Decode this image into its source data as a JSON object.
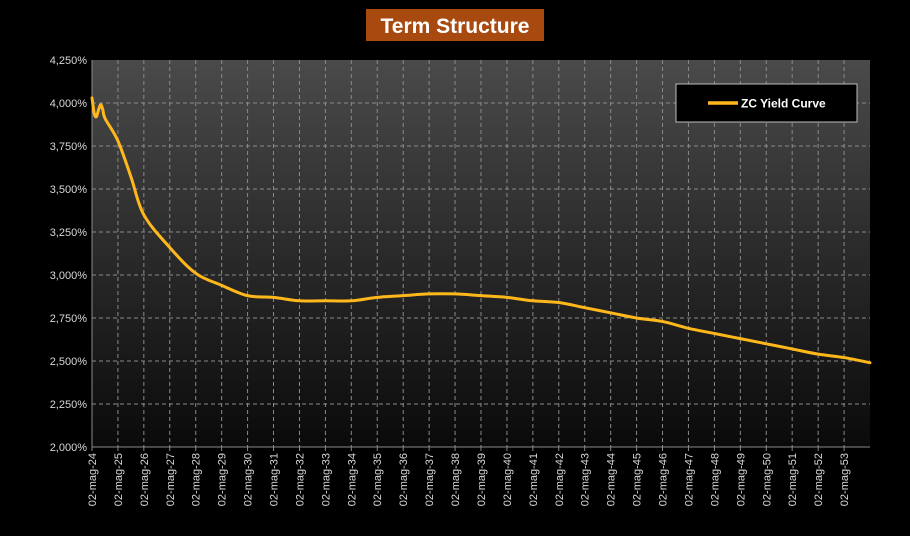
{
  "chart_data": {
    "type": "line",
    "title": "Term Structure",
    "xlabel": "",
    "ylabel": "",
    "ylim": [
      0.02,
      0.0425
    ],
    "xlim": [
      "2024-05-02",
      "2054-05-02"
    ],
    "grid": true,
    "legend_position": "top-right",
    "y_ticks": [
      {
        "value": 0.02,
        "label": "2,000%"
      },
      {
        "value": 0.0225,
        "label": "2,250%"
      },
      {
        "value": 0.025,
        "label": "2,500%"
      },
      {
        "value": 0.0275,
        "label": "2,750%"
      },
      {
        "value": 0.03,
        "label": "3,000%"
      },
      {
        "value": 0.0325,
        "label": "3,250%"
      },
      {
        "value": 0.035,
        "label": "3,500%"
      },
      {
        "value": 0.0375,
        "label": "3,750%"
      },
      {
        "value": 0.04,
        "label": "4,000%"
      },
      {
        "value": 0.0425,
        "label": "4,250%"
      }
    ],
    "x_ticks": [
      {
        "value": "2024-05-02",
        "label": "02-mag-24"
      },
      {
        "value": "2025-05-02",
        "label": "02-mag-25"
      },
      {
        "value": "2026-05-02",
        "label": "02-mag-26"
      },
      {
        "value": "2027-05-02",
        "label": "02-mag-27"
      },
      {
        "value": "2028-05-02",
        "label": "02-mag-28"
      },
      {
        "value": "2029-05-02",
        "label": "02-mag-29"
      },
      {
        "value": "2030-05-02",
        "label": "02-mag-30"
      },
      {
        "value": "2031-05-02",
        "label": "02-mag-31"
      },
      {
        "value": "2032-05-02",
        "label": "02-mag-32"
      },
      {
        "value": "2033-05-02",
        "label": "02-mag-33"
      },
      {
        "value": "2034-05-02",
        "label": "02-mag-34"
      },
      {
        "value": "2035-05-02",
        "label": "02-mag-35"
      },
      {
        "value": "2036-05-02",
        "label": "02-mag-36"
      },
      {
        "value": "2037-05-02",
        "label": "02-mag-37"
      },
      {
        "value": "2038-05-02",
        "label": "02-mag-38"
      },
      {
        "value": "2039-05-02",
        "label": "02-mag-39"
      },
      {
        "value": "2040-05-02",
        "label": "02-mag-40"
      },
      {
        "value": "2041-05-02",
        "label": "02-mag-41"
      },
      {
        "value": "2042-05-02",
        "label": "02-mag-42"
      },
      {
        "value": "2043-05-02",
        "label": "02-mag-43"
      },
      {
        "value": "2044-05-02",
        "label": "02-mag-44"
      },
      {
        "value": "2045-05-02",
        "label": "02-mag-45"
      },
      {
        "value": "2046-05-02",
        "label": "02-mag-46"
      },
      {
        "value": "2047-05-02",
        "label": "02-mag-47"
      },
      {
        "value": "2048-05-02",
        "label": "02-mag-48"
      },
      {
        "value": "2049-05-02",
        "label": "02-mag-49"
      },
      {
        "value": "2050-05-02",
        "label": "02-mag-50"
      },
      {
        "value": "2051-05-02",
        "label": "02-mag-51"
      },
      {
        "value": "2052-05-02",
        "label": "02-mag-52"
      },
      {
        "value": "2053-05-02",
        "label": "02-mag-53"
      }
    ],
    "series": [
      {
        "name": "ZC Yield Curve",
        "color": "#ffb81c",
        "points": [
          {
            "x": "2024-05-02",
            "y": 0.0403
          },
          {
            "x": "2024-06-02",
            "y": 0.0394
          },
          {
            "x": "2024-07-02",
            "y": 0.0392
          },
          {
            "x": "2024-08-02",
            "y": 0.0396
          },
          {
            "x": "2024-09-02",
            "y": 0.0399
          },
          {
            "x": "2024-10-02",
            "y": 0.0396
          },
          {
            "x": "2024-11-02",
            "y": 0.0391
          },
          {
            "x": "2025-05-02",
            "y": 0.0378
          },
          {
            "x": "2025-11-02",
            "y": 0.0357
          },
          {
            "x": "2026-05-02",
            "y": 0.0335
          },
          {
            "x": "2027-05-02",
            "y": 0.0316
          },
          {
            "x": "2028-05-02",
            "y": 0.0301
          },
          {
            "x": "2029-05-02",
            "y": 0.0294
          },
          {
            "x": "2030-05-02",
            "y": 0.0288
          },
          {
            "x": "2031-05-02",
            "y": 0.0287
          },
          {
            "x": "2032-05-02",
            "y": 0.0285
          },
          {
            "x": "2033-05-02",
            "y": 0.0285
          },
          {
            "x": "2034-05-02",
            "y": 0.0285
          },
          {
            "x": "2035-05-02",
            "y": 0.0287
          },
          {
            "x": "2036-05-02",
            "y": 0.0288
          },
          {
            "x": "2037-05-02",
            "y": 0.0289
          },
          {
            "x": "2038-05-02",
            "y": 0.0289
          },
          {
            "x": "2039-05-02",
            "y": 0.0288
          },
          {
            "x": "2040-05-02",
            "y": 0.0287
          },
          {
            "x": "2041-05-02",
            "y": 0.0285
          },
          {
            "x": "2042-05-02",
            "y": 0.0284
          },
          {
            "x": "2043-05-02",
            "y": 0.0281
          },
          {
            "x": "2044-05-02",
            "y": 0.0278
          },
          {
            "x": "2045-05-02",
            "y": 0.0275
          },
          {
            "x": "2046-05-02",
            "y": 0.0273
          },
          {
            "x": "2047-05-02",
            "y": 0.0269
          },
          {
            "x": "2048-05-02",
            "y": 0.0266
          },
          {
            "x": "2049-05-02",
            "y": 0.0263
          },
          {
            "x": "2050-05-02",
            "y": 0.026
          },
          {
            "x": "2051-05-02",
            "y": 0.0257
          },
          {
            "x": "2052-05-02",
            "y": 0.0254
          },
          {
            "x": "2053-05-02",
            "y": 0.0252
          },
          {
            "x": "2054-05-02",
            "y": 0.0249
          }
        ]
      }
    ],
    "colors": {
      "background": "#000000",
      "plot_top": "#4a4a4a",
      "plot_bottom": "#0a0a0a",
      "grid": "#8a8a8a",
      "title_bg": "#a84a10",
      "title_text": "#ffffff",
      "tick_text": "#d8d8d8",
      "legend_bg": "#000000",
      "legend_border": "#bdbdbd"
    }
  }
}
